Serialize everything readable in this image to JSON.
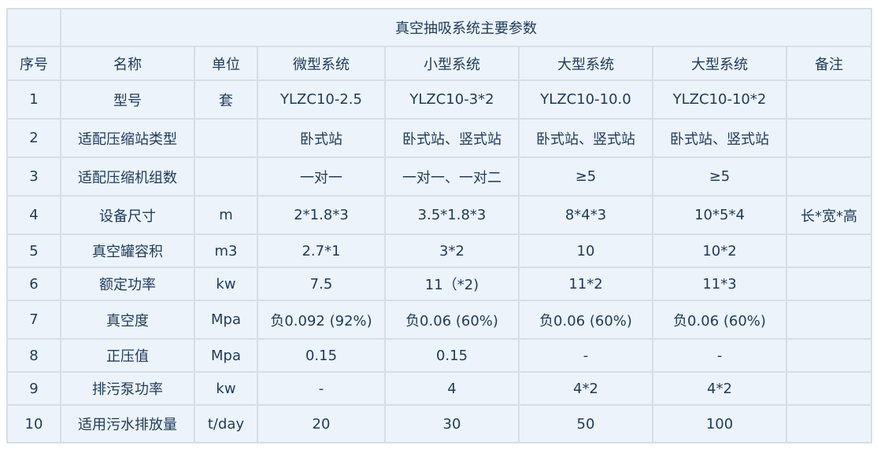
{
  "title": "真空抽吸系统主要参数",
  "headers": [
    "序号",
    "名称",
    "单位",
    "微型系统",
    "小型系统",
    "大型系统",
    "大型系统",
    "备注"
  ],
  "rows": [
    [
      "1",
      "型号",
      "套",
      "YLZC10-2.5",
      "YLZC10-3*2",
      "YLZC10-10.0",
      "YLZC10-10*2",
      ""
    ],
    [
      "2",
      "适配压缩站类型",
      "",
      "卧式站",
      "卧式站、竖式站",
      "卧式站、竖式站",
      "卧式站、竖式站",
      ""
    ],
    [
      "3",
      "适配压缩机组数",
      "",
      "一对一",
      "一对一、一对二",
      "≥5",
      "≥5",
      ""
    ],
    [
      "4",
      "设备尺寸",
      "m",
      "2*1.8*3",
      "3.5*1.8*3",
      "8*4*3",
      "10*5*4",
      "长*宽*高"
    ],
    [
      "5",
      "真空罐容积",
      "m3",
      "2.7*1",
      "3*2",
      "10",
      "10*2",
      ""
    ],
    [
      "6",
      "额定功率",
      "kw",
      "7.5",
      "11（*2)",
      "11*2",
      "11*3",
      ""
    ],
    [
      "7",
      "真空度",
      "Mpa",
      "负0.092 (92%)",
      "负0.06 (60%)",
      "负0.06 (60%)",
      "负0.06 (60%)",
      ""
    ],
    [
      "8",
      "正压值",
      "Mpa",
      "0.15",
      "0.15",
      "-",
      "-",
      ""
    ],
    [
      "9",
      "排污泵功率",
      "kw",
      "-",
      "4",
      "4*2",
      "4*2",
      ""
    ],
    [
      "10",
      "适用污水排放量",
      "t/day",
      "20",
      "30",
      "50",
      "100",
      ""
    ]
  ]
}
